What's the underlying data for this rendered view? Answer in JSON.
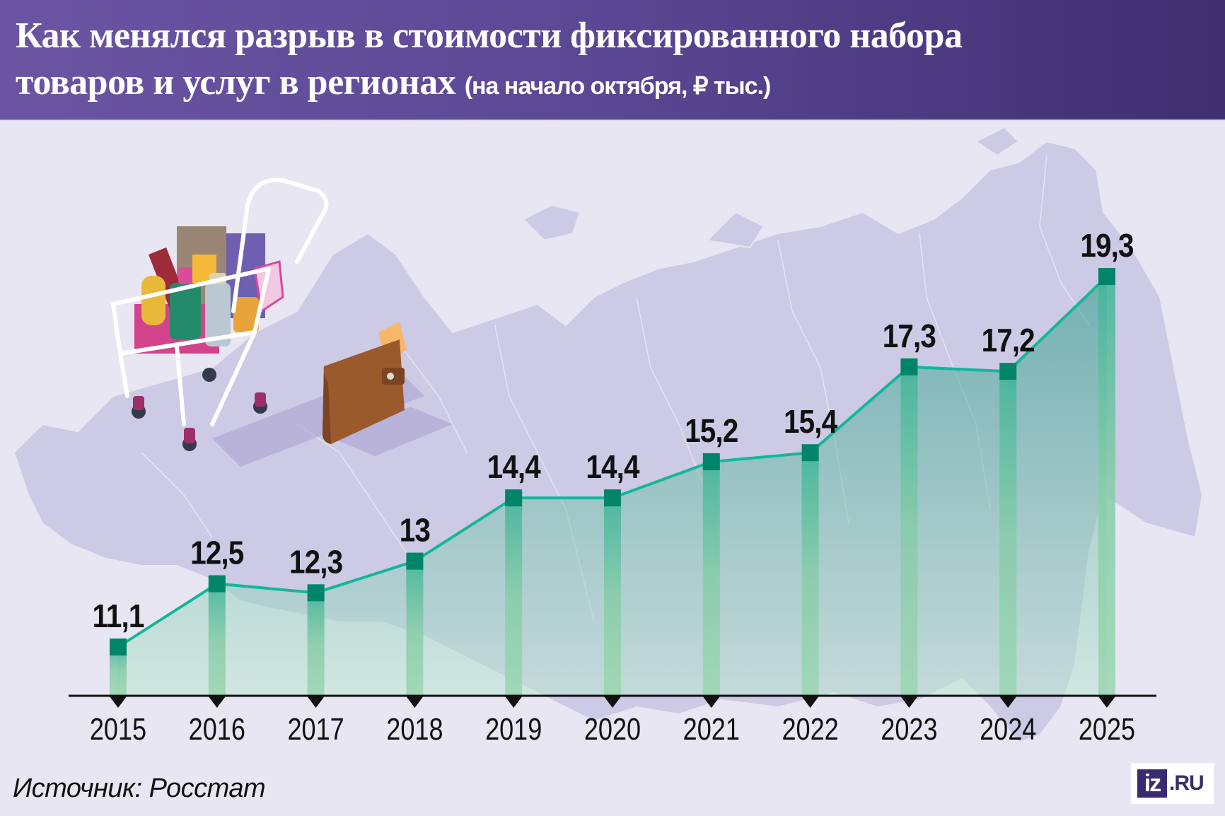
{
  "header": {
    "title_line1": "Как менялся разрыв в стоимости фиксированного набора",
    "title_line2": "товаров и услуг в регионах",
    "subtitle": "(на начало октября, ₽ тыс.)"
  },
  "footer": {
    "source": "Источник: Росстат",
    "logo_mark": "iz",
    "logo_domain": ".RU"
  },
  "colors": {
    "header_start": "#6b55a3",
    "header_end": "#3d2f70",
    "background": "#e8e6f2",
    "map": "#cccae5",
    "line": "#14b69a",
    "marker": "#00856a",
    "bar_light": "#9ad6b0",
    "area": "#14a08a",
    "logo": "#3a2a6e"
  },
  "illustration": {
    "items": [
      "shopping-cart",
      "wallet",
      "russia-map"
    ]
  },
  "chart_data": {
    "type": "line",
    "title": "Как менялся разрыв в стоимости фиксированного набора товаров и услуг в регионах (на начало октября, ₽ тыс.)",
    "xlabel": "",
    "ylabel": "₽ тыс.",
    "categories": [
      "2015",
      "2016",
      "2017",
      "2018",
      "2019",
      "2020",
      "2021",
      "2022",
      "2023",
      "2024",
      "2025"
    ],
    "values": [
      11.1,
      12.5,
      12.3,
      13,
      14.4,
      14.4,
      15.2,
      15.4,
      17.3,
      17.2,
      19.3
    ],
    "labels": [
      "11,1",
      "12,5",
      "12,3",
      "13",
      "14,4",
      "14,4",
      "15,2",
      "15,4",
      "17,3",
      "17,2",
      "19,3"
    ],
    "grid": false,
    "legend": "none",
    "area_fill": true,
    "drop_bars": true
  }
}
